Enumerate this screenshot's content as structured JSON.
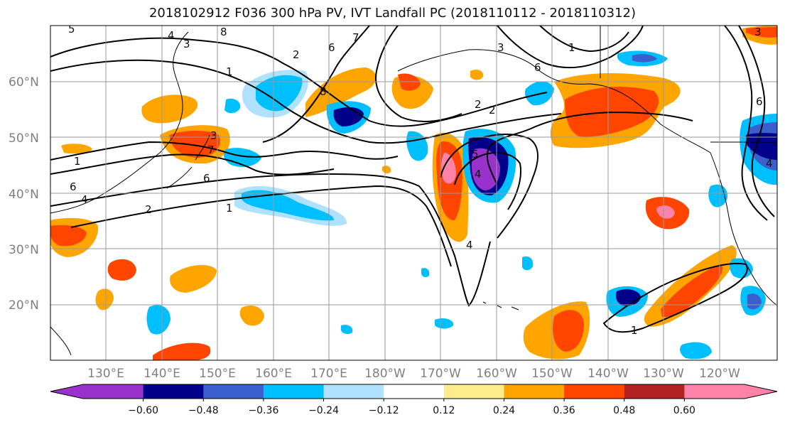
{
  "map": {
    "title": "2018102912 F036 300 hPa PV, IVT Landfall PC (2018110112 - 2018110312)",
    "lat_labels": [
      "60°N",
      "50°N",
      "40°N",
      "30°N",
      "20°N"
    ],
    "lon_labels": [
      "130°E",
      "140°E",
      "150°E",
      "160°E",
      "170°E",
      "180°W",
      "170°W",
      "160°W",
      "150°W",
      "140°W",
      "130°W",
      "120°W"
    ],
    "contour_labels": [
      "1",
      "2",
      "3",
      "4",
      "5",
      "6",
      "7",
      "8"
    ],
    "colorbar": {
      "colors": [
        "#9932cc",
        "#00008b",
        "#3a5fcd",
        "#00bfff",
        "#b0e2ff",
        "#ffffff",
        "#ffec8b",
        "#ffa500",
        "#ff4500",
        "#b22222",
        "#ff82ab"
      ],
      "tick_labels": [
        "−0.60",
        "−0.48",
        "−0.36",
        "−0.24",
        "−0.12",
        "0.12",
        "0.24",
        "0.36",
        "0.48",
        "0.60"
      ]
    }
  }
}
